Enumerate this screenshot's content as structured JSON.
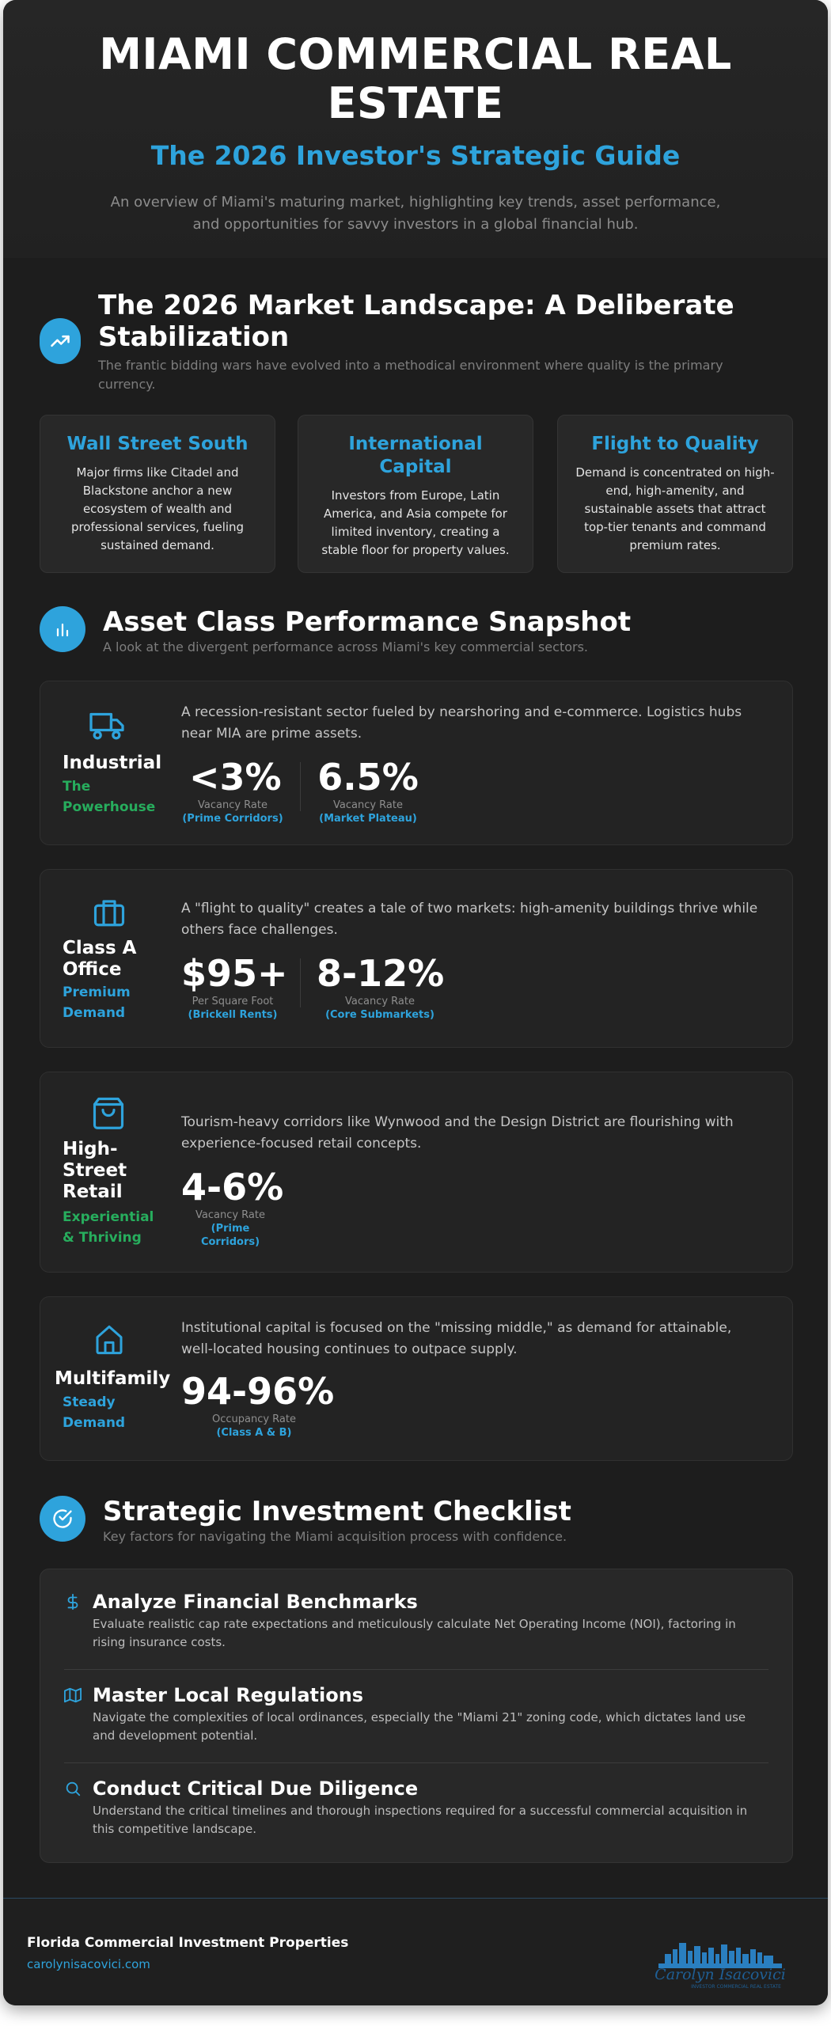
{
  "hero": {
    "title": "MIAMI COMMERCIAL REAL ESTATE",
    "subtitle": "The 2026 Investor's Strategic Guide",
    "description": "An overview of Miami's maturing market, highlighting key trends, asset performance, and opportunities for savvy investors in a global financial hub."
  },
  "landscape": {
    "icon": "trending-up-icon",
    "title": "The 2026 Market Landscape: A Deliberate Stabilization",
    "subtitle": "The frantic bidding wars have evolved into a methodical environment where quality is the primary currency.",
    "cards": [
      {
        "title": "Wall Street South",
        "text": "Major firms like Citadel and Blackstone anchor a new ecosystem of wealth and professional services, fueling sustained demand."
      },
      {
        "title": "International Capital",
        "text": "Investors from Europe, Latin America, and Asia compete for limited inventory, creating a stable floor for property values."
      },
      {
        "title": "Flight to Quality",
        "text": "Demand is concentrated on high-end, high-amenity, and sustainable assets that attract top-tier tenants and command premium rates."
      }
    ]
  },
  "performance": {
    "icon": "bar-chart-icon",
    "title": "Asset Class Performance Snapshot",
    "subtitle": "A look at the divergent performance across Miami's key commercial sectors.",
    "assets": [
      {
        "icon": "truck-icon",
        "name": "Industrial",
        "tag": "The Powerhouse",
        "tag_color": "#27ad5d",
        "description": "A recession-resistant sector fueled by nearshoring and e-commerce. Logistics hubs near MIA are prime assets.",
        "stats": [
          {
            "value": "<3%",
            "label": "Vacancy Rate",
            "note": "(Prime Corridors)"
          },
          {
            "value": "6.5%",
            "label": "Vacancy Rate",
            "note": "(Market Plateau)"
          }
        ]
      },
      {
        "icon": "briefcase-icon",
        "name": "Class A Office",
        "tag": "Premium Demand",
        "tag_color": "#2ea3dc",
        "description": "A \"flight to quality\" creates a tale of two markets: high-amenity buildings thrive while others face challenges.",
        "stats": [
          {
            "value": "$95+",
            "label": "Per Square Foot",
            "note": "(Brickell Rents)"
          },
          {
            "value": "8-12%",
            "label": "Vacancy Rate",
            "note": "(Core Submarkets)"
          }
        ]
      },
      {
        "icon": "shopping-bag-icon",
        "name": "High-Street Retail",
        "tag": "Experiential & Thriving",
        "tag_color": "#27ad5d",
        "description": "Tourism-heavy corridors like Wynwood and the Design District are flourishing with experience-focused retail concepts.",
        "stats": [
          {
            "value": "4-6%",
            "label": "Vacancy Rate",
            "note": "(Prime Corridors)"
          }
        ]
      },
      {
        "icon": "home-icon",
        "name": "Multifamily",
        "tag": "Steady Demand",
        "tag_color": "#2ea3dc",
        "description": "Institutional capital is focused on the \"missing middle,\" as demand for attainable, well-located housing continues to outpace supply.",
        "stats": [
          {
            "value": "94-96%",
            "label": "Occupancy Rate",
            "note": "(Class A & B)"
          }
        ]
      }
    ]
  },
  "checklist": {
    "icon": "check-circle-icon",
    "title": "Strategic Investment Checklist",
    "subtitle": "Key factors for navigating the Miami acquisition process with confidence.",
    "items": [
      {
        "icon": "dollar-icon",
        "title": "Analyze Financial Benchmarks",
        "text": "Evaluate realistic cap rate expectations and meticulously calculate Net Operating Income (NOI), factoring in rising insurance costs."
      },
      {
        "icon": "map-icon",
        "title": "Master Local Regulations",
        "text": "Navigate the complexities of local ordinances, especially the \"Miami 21\" zoning code, which dictates land use and development potential."
      },
      {
        "icon": "search-icon",
        "title": "Conduct Critical Due Diligence",
        "text": "Understand the critical timelines and thorough inspections required for a successful commercial acquisition in this competitive landscape."
      }
    ]
  },
  "footer": {
    "company": "Florida Commercial Investment Properties",
    "url": "carolynisacovici.com",
    "logo_signature": "Carolyn Isacovici",
    "logo_tagline": "INVESTOR COMMERCIAL REAL ESTATE"
  },
  "colors": {
    "accent": "#2ea3dc",
    "green": "#27ad5d",
    "background": "#1d1d1d"
  }
}
